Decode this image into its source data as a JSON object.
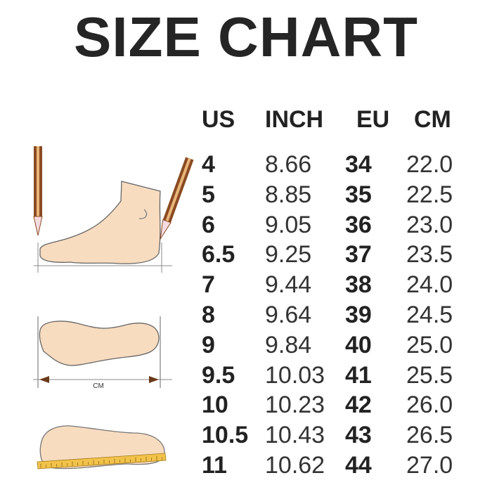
{
  "title": "SIZE CHART",
  "columns": [
    "US",
    "INCH",
    "EU",
    "CM"
  ],
  "rows": [
    [
      "4",
      "8.66",
      "34",
      "22.0"
    ],
    [
      "5",
      "8.85",
      "35",
      "22.5"
    ],
    [
      "6",
      "9.05",
      "36",
      "23.0"
    ],
    [
      "6.5",
      "9.25",
      "37",
      "23.5"
    ],
    [
      "7",
      "9.44",
      "38",
      "24.0"
    ],
    [
      "8",
      "9.64",
      "39",
      "24.5"
    ],
    [
      "9",
      "9.84",
      "40",
      "25.0"
    ],
    [
      "9.5",
      "10.03",
      "41",
      "25.5"
    ],
    [
      "10",
      "10.23",
      "42",
      "26.0"
    ],
    [
      "10.5",
      "10.43",
      "43",
      "26.5"
    ],
    [
      "11",
      "10.62",
      "44",
      "27.0"
    ]
  ],
  "illustration": {
    "width_label": "CM",
    "skin_color": "#f8dcc0",
    "pencil_color": "#8a4a22",
    "ruler_color": "#f2c24a"
  }
}
